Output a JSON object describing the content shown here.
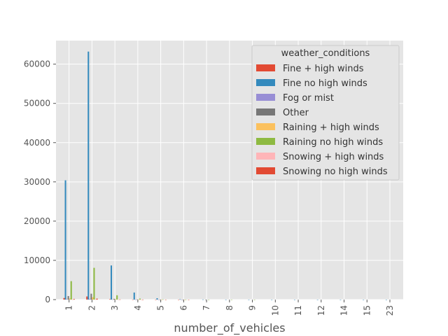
{
  "chart_data": {
    "type": "bar",
    "xlabel": "number_of_vehicles",
    "ylabel": "",
    "ylim": [
      0,
      66000
    ],
    "yticks": [
      0,
      10000,
      20000,
      30000,
      40000,
      50000,
      60000
    ],
    "grid": true,
    "legend_position": "top-right",
    "legend_title": "weather_conditions",
    "categories": [
      "1",
      "2",
      "3",
      "4",
      "5",
      "6",
      "7",
      "8",
      "9",
      "10",
      "11",
      "12",
      "14",
      "15",
      "23"
    ],
    "series": [
      {
        "name": "Fine + high winds",
        "color": "#E24A33",
        "values": [
          400,
          800,
          100,
          20,
          5,
          2,
          0,
          0,
          0,
          0,
          0,
          0,
          0,
          0,
          0
        ]
      },
      {
        "name": "Fine no high winds",
        "color": "#348ABD",
        "values": [
          30400,
          63200,
          8700,
          1800,
          350,
          90,
          30,
          10,
          5,
          3,
          2,
          1,
          1,
          1,
          1
        ]
      },
      {
        "name": "Fog or mist",
        "color": "#988ED5",
        "values": [
          100,
          150,
          30,
          10,
          2,
          1,
          0,
          0,
          0,
          0,
          0,
          0,
          0,
          0,
          0
        ]
      },
      {
        "name": "Other",
        "color": "#777777",
        "values": [
          900,
          1500,
          200,
          40,
          10,
          3,
          1,
          0,
          0,
          0,
          0,
          0,
          0,
          0,
          0
        ]
      },
      {
        "name": "Raining + high winds",
        "color": "#FBC15E",
        "values": [
          300,
          600,
          100,
          20,
          5,
          1,
          0,
          0,
          0,
          0,
          0,
          0,
          0,
          0,
          0
        ]
      },
      {
        "name": "Raining no high winds",
        "color": "#8EBA42",
        "values": [
          4700,
          8100,
          1100,
          250,
          50,
          15,
          5,
          2,
          1,
          0,
          0,
          0,
          0,
          0,
          0
        ]
      },
      {
        "name": "Snowing + high winds",
        "color": "#FFB5B8",
        "values": [
          20,
          40,
          5,
          1,
          0,
          0,
          0,
          0,
          0,
          0,
          0,
          0,
          0,
          0,
          0
        ]
      },
      {
        "name": "Snowing no high winds",
        "color": "#E24A33",
        "values": [
          150,
          250,
          40,
          10,
          2,
          1,
          0,
          0,
          0,
          0,
          0,
          0,
          0,
          0,
          0
        ]
      }
    ]
  }
}
